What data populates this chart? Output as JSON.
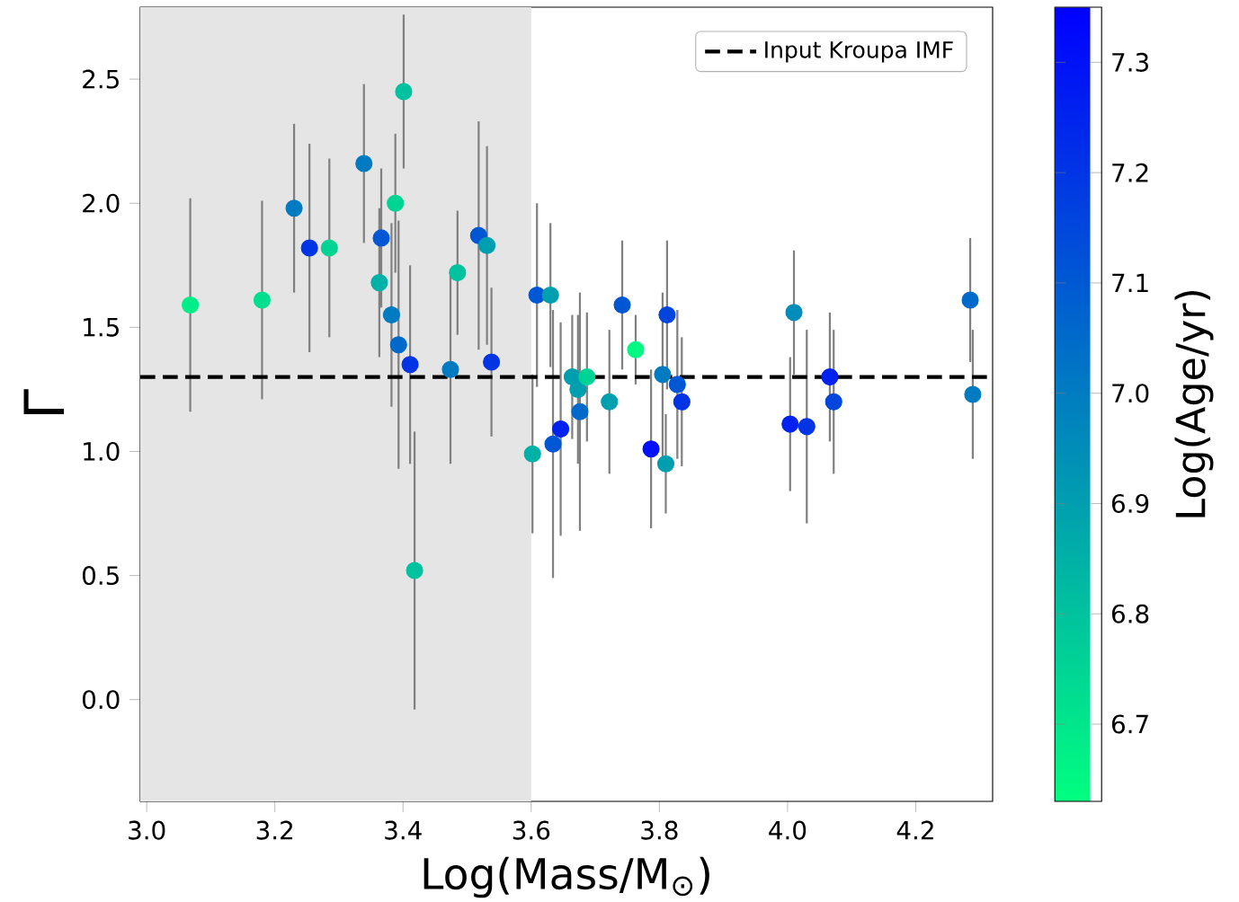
{
  "chart_data": {
    "type": "scatter",
    "xlabel": "Log(Mass/M$_{⊙}$)",
    "ylabel": "Γ",
    "clabel": "Log(Age/yr)",
    "xlim": [
      2.99,
      4.32
    ],
    "ylim": [
      -0.41,
      2.79
    ],
    "xticks": [
      {
        "value": 3.0,
        "label": "3.0"
      },
      {
        "value": 3.2,
        "label": "3.2"
      },
      {
        "value": 3.4,
        "label": "3.4"
      },
      {
        "value": 3.6,
        "label": "3.6"
      },
      {
        "value": 3.8,
        "label": "3.8"
      },
      {
        "value": 4.0,
        "label": "4.0"
      },
      {
        "value": 4.2,
        "label": "4.2"
      }
    ],
    "yticks": [
      {
        "value": 0.0,
        "label": "0.0"
      },
      {
        "value": 0.5,
        "label": "0.5"
      },
      {
        "value": 1.0,
        "label": "1.0"
      },
      {
        "value": 1.5,
        "label": "1.5"
      },
      {
        "value": 2.0,
        "label": "2.0"
      },
      {
        "value": 2.5,
        "label": "2.5"
      }
    ],
    "clim": [
      6.63,
      7.35
    ],
    "cticks": [
      {
        "value": 6.7,
        "label": "6.7"
      },
      {
        "value": 6.8,
        "label": "6.8"
      },
      {
        "value": 6.9,
        "label": "6.9"
      },
      {
        "value": 7.0,
        "label": "7.0"
      },
      {
        "value": 7.1,
        "label": "7.1"
      },
      {
        "value": 7.2,
        "label": "7.2"
      },
      {
        "value": 7.3,
        "label": "7.3"
      }
    ],
    "marker": "circle",
    "legend": "top right",
    "bands": [
      {
        "axis": "x",
        "from": 2.99,
        "to": 3.6,
        "color": "#e5e5e5"
      }
    ],
    "ref_lines": [
      {
        "axis": "y",
        "value": 1.3,
        "label": "Input Kroupa IMF",
        "color": "#000000",
        "line_style": "dashed"
      }
    ],
    "series": [
      {
        "x": [
          3.068,
          3.18,
          3.23,
          3.254,
          3.285,
          3.339,
          3.401,
          3.388,
          3.366,
          3.363,
          3.382,
          3.393,
          3.411,
          3.418,
          3.474,
          3.485,
          3.518,
          3.531,
          3.538,
          3.609,
          3.63,
          3.602,
          3.634,
          3.646,
          3.664,
          3.673,
          3.676,
          3.687,
          3.722,
          3.742,
          3.763,
          3.787,
          3.805,
          3.812,
          3.81,
          3.828,
          3.835,
          4.004,
          4.01,
          4.03,
          4.066,
          4.072,
          4.285,
          4.289
        ],
        "values": [
          1.59,
          1.61,
          1.98,
          1.82,
          1.82,
          2.16,
          2.45,
          2.0,
          1.86,
          1.68,
          1.55,
          1.43,
          1.35,
          0.52,
          1.33,
          1.72,
          1.87,
          1.83,
          1.36,
          1.63,
          1.63,
          0.99,
          1.03,
          1.09,
          1.3,
          1.25,
          1.16,
          1.3,
          1.2,
          1.59,
          1.41,
          1.01,
          1.31,
          1.55,
          0.95,
          1.27,
          1.2,
          1.11,
          1.56,
          1.1,
          1.3,
          1.2,
          1.61,
          1.23
        ],
        "errors": [
          0.43,
          0.4,
          0.34,
          0.42,
          0.36,
          0.32,
          0.31,
          0.28,
          0.28,
          0.3,
          0.37,
          0.5,
          0.4,
          0.56,
          0.38,
          0.25,
          0.46,
          0.4,
          0.3,
          0.37,
          0.29,
          0.32,
          0.54,
          0.43,
          0.25,
          0.3,
          0.48,
          0.26,
          0.29,
          0.26,
          0.14,
          0.32,
          0.33,
          0.3,
          0.2,
          0.3,
          0.26,
          0.27,
          0.25,
          0.39,
          0.26,
          0.29,
          0.25,
          0.26
        ],
        "cvalues": [
          6.68,
          6.72,
          7.0,
          7.2,
          6.75,
          7.0,
          6.8,
          6.75,
          7.1,
          6.85,
          7.0,
          7.05,
          7.2,
          6.8,
          7.0,
          6.8,
          7.1,
          6.9,
          7.2,
          7.1,
          6.9,
          6.85,
          7.1,
          7.25,
          6.9,
          6.9,
          7.05,
          6.75,
          6.9,
          7.1,
          6.65,
          7.3,
          7.0,
          7.15,
          6.9,
          7.1,
          7.2,
          7.25,
          6.95,
          7.2,
          7.25,
          7.15,
          7.05,
          7.0
        ]
      }
    ]
  }
}
